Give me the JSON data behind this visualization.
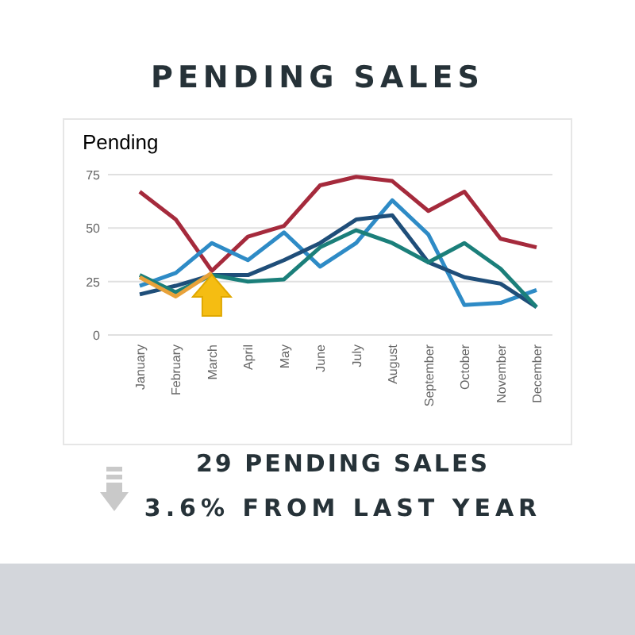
{
  "chart_data": {
    "type": "line",
    "title": "PENDING SALES",
    "ylabel": "Pending",
    "categories": [
      "January",
      "February",
      "March",
      "April",
      "May",
      "June",
      "July",
      "August",
      "September",
      "October",
      "November",
      "December"
    ],
    "series": [
      {
        "color": "#a52a3c",
        "values": [
          67,
          54,
          30,
          46,
          51,
          70,
          74,
          72,
          58,
          67,
          45,
          41
        ]
      },
      {
        "color": "#2e8bc6",
        "values": [
          23,
          29,
          43,
          35,
          48,
          32,
          43,
          63,
          47,
          14,
          15,
          21
        ]
      },
      {
        "color": "#1f4e79",
        "values": [
          19,
          23,
          28,
          28,
          35,
          43,
          54,
          56,
          34,
          27,
          24,
          13
        ]
      },
      {
        "color": "#1b7f7a",
        "values": [
          28,
          20,
          28,
          25,
          26,
          41,
          49,
          43,
          34,
          43,
          31,
          13
        ]
      },
      {
        "color": "#e8a23a",
        "values": [
          27,
          18,
          29,
          null,
          null,
          null,
          null,
          null,
          null,
          null,
          null,
          null
        ]
      }
    ],
    "ylim": [
      0,
      75
    ],
    "yticks": [
      0,
      25,
      50,
      75
    ],
    "grid": "y",
    "marker": "none",
    "line_style": "solid",
    "annotations": [
      "29 PENDING SALES",
      "3.6% FROM LAST YEAR"
    ]
  }
}
